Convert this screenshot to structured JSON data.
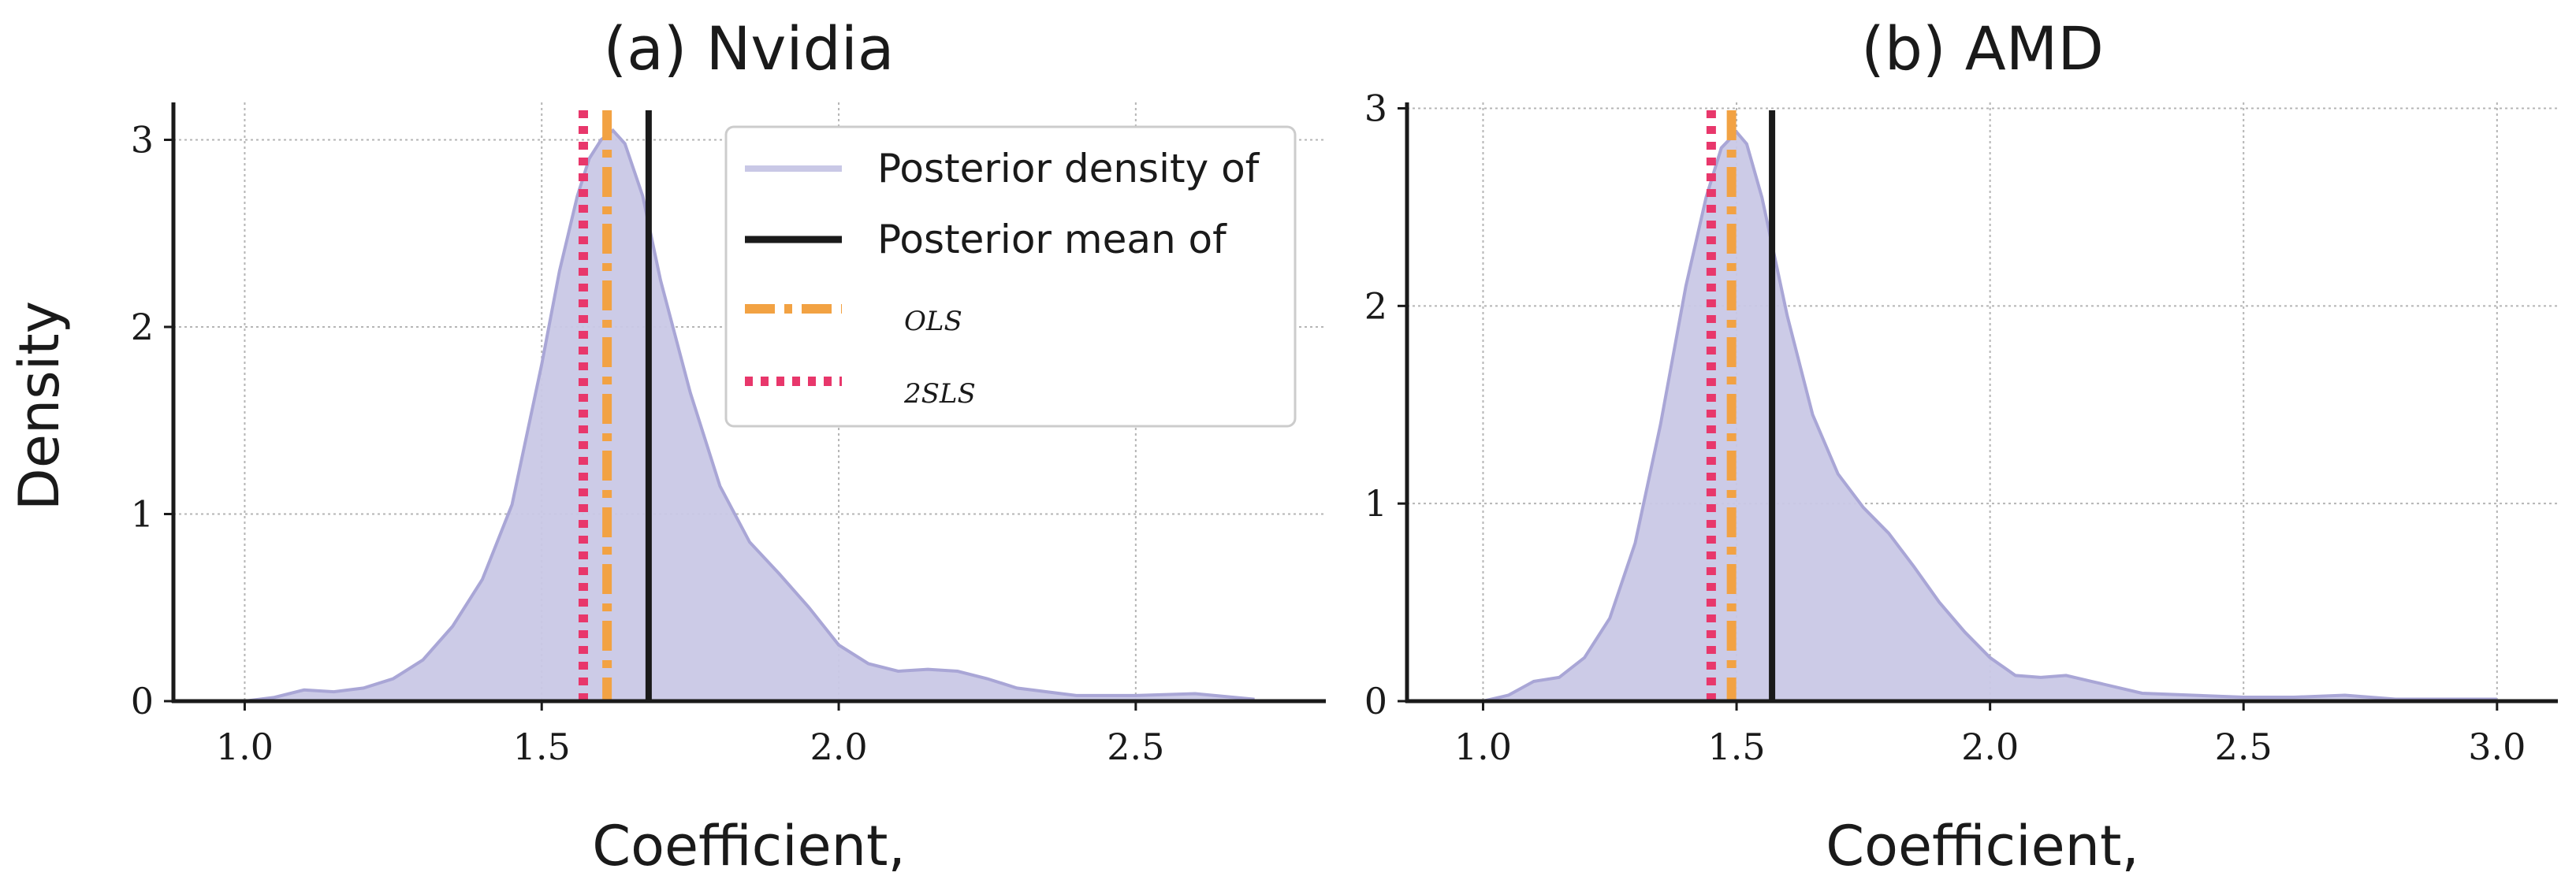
{
  "colors": {
    "density_fill": "#c9c8e6",
    "density_line": "#a9a6d6",
    "mean_line": "#1a1a1a",
    "ols_line": "#f2a243",
    "tsls_line": "#e8376b",
    "grid": "#b5b5b5",
    "axis": "#1a1a1a"
  },
  "legend": {
    "density": "Posterior density of",
    "mean": "Posterior mean of",
    "ols": "OLS",
    "tsls": "2SLS"
  },
  "chart_data": [
    {
      "type": "area",
      "title": "(a) Nvidia",
      "xlabel": "Coefficient,",
      "ylabel": "Density",
      "xlim": [
        0.88,
        2.82
      ],
      "ylim": [
        0,
        3.2
      ],
      "xticks": [
        1.0,
        1.5,
        2.0,
        2.5
      ],
      "xtick_labels": [
        "1.0",
        "1.5",
        "2.0",
        "2.5"
      ],
      "yticks": [
        0,
        1,
        2,
        3
      ],
      "ytick_labels": [
        "0",
        "1",
        "2",
        "3"
      ],
      "grid": true,
      "legend_position": "top-right",
      "series": [
        {
          "name": "Posterior density",
          "x": [
            1.0,
            1.05,
            1.1,
            1.15,
            1.2,
            1.25,
            1.3,
            1.35,
            1.4,
            1.45,
            1.5,
            1.53,
            1.56,
            1.58,
            1.6,
            1.62,
            1.64,
            1.67,
            1.7,
            1.75,
            1.8,
            1.85,
            1.9,
            1.95,
            2.0,
            2.05,
            2.1,
            2.15,
            2.2,
            2.25,
            2.3,
            2.4,
            2.5,
            2.6,
            2.7
          ],
          "y": [
            0.0,
            0.02,
            0.06,
            0.05,
            0.07,
            0.12,
            0.22,
            0.4,
            0.65,
            1.05,
            1.8,
            2.3,
            2.7,
            2.9,
            3.0,
            3.05,
            2.98,
            2.7,
            2.25,
            1.65,
            1.15,
            0.85,
            0.68,
            0.5,
            0.3,
            0.2,
            0.16,
            0.17,
            0.16,
            0.12,
            0.07,
            0.03,
            0.03,
            0.04,
            0.01
          ]
        }
      ],
      "vlines": {
        "posterior_mean": 1.68,
        "ols": 1.61,
        "tsls": 1.57
      }
    },
    {
      "type": "area",
      "title": "(b) AMD",
      "xlabel": "Coefficient,",
      "ylabel": "",
      "xlim": [
        0.85,
        3.12
      ],
      "ylim": [
        0,
        3.03
      ],
      "xticks": [
        1.0,
        1.5,
        2.0,
        2.5,
        3.0
      ],
      "xtick_labels": [
        "1.0",
        "1.5",
        "2.0",
        "2.5",
        "3.0"
      ],
      "yticks": [
        0,
        1,
        2,
        3
      ],
      "ytick_labels": [
        "0",
        "1",
        "2",
        "3"
      ],
      "grid": true,
      "series": [
        {
          "name": "Posterior density",
          "x": [
            1.0,
            1.05,
            1.1,
            1.15,
            1.2,
            1.25,
            1.3,
            1.35,
            1.4,
            1.44,
            1.47,
            1.5,
            1.52,
            1.55,
            1.6,
            1.65,
            1.7,
            1.75,
            1.8,
            1.85,
            1.9,
            1.95,
            2.0,
            2.05,
            2.1,
            2.15,
            2.2,
            2.3,
            2.4,
            2.5,
            2.6,
            2.7,
            2.8,
            2.9,
            3.0
          ],
          "y": [
            0.0,
            0.03,
            0.1,
            0.12,
            0.22,
            0.42,
            0.8,
            1.4,
            2.1,
            2.55,
            2.8,
            2.88,
            2.82,
            2.55,
            1.95,
            1.45,
            1.15,
            0.98,
            0.85,
            0.68,
            0.5,
            0.35,
            0.22,
            0.13,
            0.12,
            0.13,
            0.1,
            0.04,
            0.03,
            0.02,
            0.02,
            0.03,
            0.01,
            0.01,
            0.01
          ]
        }
      ],
      "vlines": {
        "posterior_mean": 1.57,
        "ols": 1.49,
        "tsls": 1.45
      }
    }
  ]
}
